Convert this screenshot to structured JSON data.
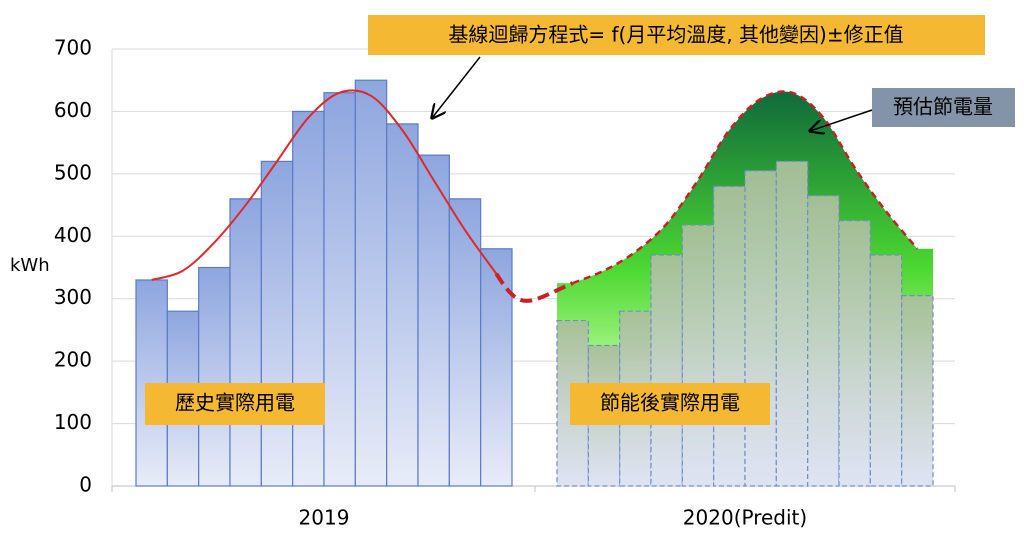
{
  "chart_data": {
    "type": "bar",
    "ylabel": "kWh",
    "ylim": [
      0,
      700
    ],
    "yticks": [
      0,
      100,
      200,
      300,
      400,
      500,
      600,
      700
    ],
    "grid": true,
    "groups": [
      {
        "label": "2019",
        "values": [
          330,
          280,
          350,
          460,
          520,
          600,
          630,
          650,
          580,
          530,
          460,
          380
        ],
        "baseline": [
          330,
          345,
          390,
          450,
          520,
          590,
          630,
          625,
          570,
          490,
          410,
          340
        ]
      },
      {
        "label": "2020(Predit)",
        "values": [
          265,
          225,
          280,
          370,
          418,
          480,
          505,
          520,
          465,
          425,
          370,
          305
        ],
        "baseline": [
          325,
          345,
          375,
          420,
          490,
          570,
          620,
          630,
          590,
          510,
          440,
          380
        ]
      }
    ],
    "annotations": [
      "基線迴歸方程式= f(月平均溫度, 其他變因)±修正值",
      "預估節電量",
      "歷史實際用電",
      "節能後實際用電"
    ]
  }
}
